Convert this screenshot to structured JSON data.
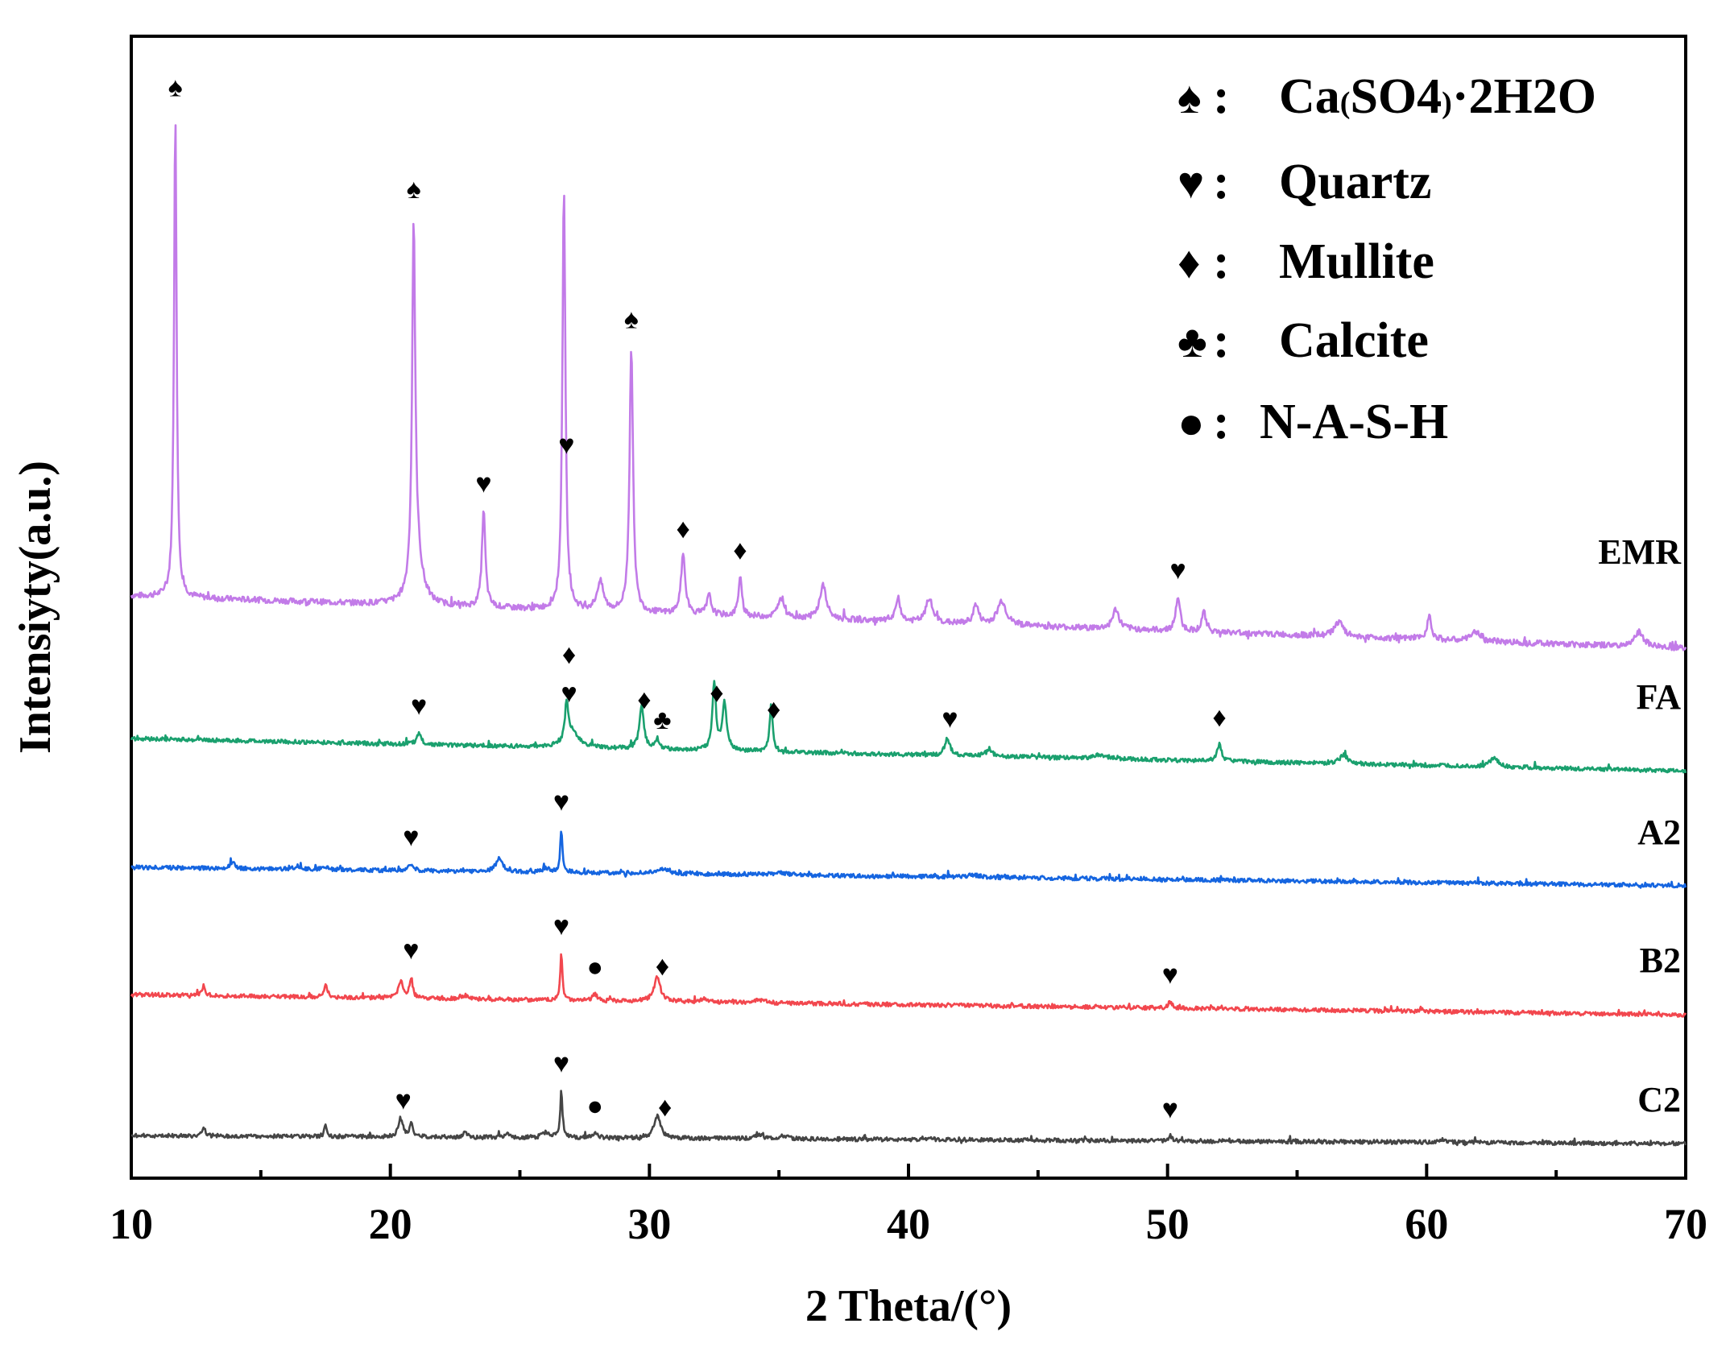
{
  "chart_data": {
    "type": "line",
    "title": "",
    "xlabel": "2 Theta/(°)",
    "ylabel": "Intensiyty(a.u.)",
    "xlim": [
      10,
      70
    ],
    "xticks": [
      10,
      20,
      30,
      40,
      50,
      60,
      70
    ],
    "yticks_shown": false,
    "legend": {
      "position": "top-right",
      "entries": [
        {
          "symbol": "♠",
          "sep": ":",
          "label": "Ca(SO4)·2H2O",
          "label_parts": {
            "a": "Ca",
            "b": "(",
            "c": "SO",
            "d": "4",
            "e": ")",
            "f": "·2H",
            "g": "2",
            "h": "O"
          }
        },
        {
          "symbol": "♥",
          "sep": ":",
          "label": "Quartz"
        },
        {
          "symbol": "♦",
          "sep": ":",
          "label": "Mullite"
        },
        {
          "symbol": "♣",
          "sep": ":",
          "label": "Calcite"
        },
        {
          "symbol": "●",
          "sep": ":",
          "label": "N-A-S-H"
        }
      ]
    },
    "series": [
      {
        "name": "EMR",
        "color": "#c27be8",
        "baseline": 0.0,
        "slope": -0.0018,
        "peaks": [
          [
            11.7,
            1.0,
            0.06
          ],
          [
            20.9,
            0.72,
            0.07
          ],
          [
            21.0,
            0.1,
            0.25
          ],
          [
            23.6,
            0.2,
            0.08
          ],
          [
            26.7,
            0.87,
            0.07
          ],
          [
            28.1,
            0.06,
            0.15
          ],
          [
            29.3,
            0.55,
            0.08
          ],
          [
            31.3,
            0.12,
            0.1
          ],
          [
            32.3,
            0.04,
            0.1
          ],
          [
            33.5,
            0.08,
            0.08
          ],
          [
            35.1,
            0.04,
            0.15
          ],
          [
            36.7,
            0.07,
            0.15
          ],
          [
            39.6,
            0.05,
            0.1
          ],
          [
            40.8,
            0.05,
            0.15
          ],
          [
            42.6,
            0.04,
            0.12
          ],
          [
            43.6,
            0.05,
            0.2
          ],
          [
            48.0,
            0.04,
            0.15
          ],
          [
            50.4,
            0.07,
            0.1
          ],
          [
            51.4,
            0.04,
            0.1
          ],
          [
            56.6,
            0.03,
            0.2
          ],
          [
            60.1,
            0.05,
            0.1
          ],
          [
            61.9,
            0.02,
            0.2
          ],
          [
            68.2,
            0.03,
            0.2
          ]
        ]
      },
      {
        "name": "FA",
        "color": "#1aa06e",
        "baseline": 0.0,
        "slope": -0.0016,
        "peaks": [
          [
            21.1,
            0.035,
            0.1
          ],
          [
            26.8,
            0.11,
            0.07
          ],
          [
            27.0,
            0.05,
            0.3
          ],
          [
            29.7,
            0.13,
            0.1
          ],
          [
            30.3,
            0.03,
            0.1
          ],
          [
            32.5,
            0.2,
            0.08
          ],
          [
            32.9,
            0.14,
            0.1
          ],
          [
            34.7,
            0.14,
            0.07
          ],
          [
            41.5,
            0.05,
            0.12
          ],
          [
            43.1,
            0.015,
            0.2
          ],
          [
            47.4,
            0.012,
            0.3
          ],
          [
            52.0,
            0.05,
            0.1
          ],
          [
            56.8,
            0.025,
            0.2
          ],
          [
            62.6,
            0.025,
            0.2
          ]
        ]
      },
      {
        "name": "A2",
        "color": "#1565e0",
        "baseline": 0.0,
        "slope": -0.0009,
        "peaks": [
          [
            13.9,
            0.02,
            0.1
          ],
          [
            16.4,
            0.012,
            0.1
          ],
          [
            17.5,
            0.01,
            0.1
          ],
          [
            20.8,
            0.02,
            0.1
          ],
          [
            24.2,
            0.04,
            0.15
          ],
          [
            26.0,
            0.012,
            0.15
          ],
          [
            26.6,
            0.13,
            0.05
          ],
          [
            30.5,
            0.012,
            0.3
          ],
          [
            35.0,
            0.006,
            0.4
          ],
          [
            42.5,
            0.006,
            0.3
          ]
        ]
      },
      {
        "name": "B2",
        "color": "#f2474e",
        "baseline": 0.0,
        "slope": -0.001,
        "peaks": [
          [
            12.8,
            0.03,
            0.06
          ],
          [
            17.5,
            0.04,
            0.06
          ],
          [
            20.4,
            0.05,
            0.1
          ],
          [
            20.8,
            0.06,
            0.07
          ],
          [
            22.9,
            0.01,
            0.1
          ],
          [
            26.6,
            0.14,
            0.05
          ],
          [
            27.9,
            0.02,
            0.1
          ],
          [
            30.3,
            0.07,
            0.15
          ],
          [
            32.1,
            0.01,
            0.1
          ],
          [
            34.2,
            0.008,
            0.2
          ],
          [
            50.1,
            0.02,
            0.08
          ],
          [
            59.8,
            0.01,
            0.08
          ]
        ]
      },
      {
        "name": "C2",
        "color": "#454545",
        "baseline": 0.0,
        "slope": -0.0004,
        "peaks": [
          [
            12.8,
            0.025,
            0.06
          ],
          [
            17.5,
            0.03,
            0.06
          ],
          [
            20.4,
            0.055,
            0.1
          ],
          [
            20.8,
            0.04,
            0.07
          ],
          [
            22.9,
            0.015,
            0.08
          ],
          [
            24.5,
            0.01,
            0.1
          ],
          [
            26.0,
            0.015,
            0.15
          ],
          [
            26.6,
            0.14,
            0.05
          ],
          [
            27.9,
            0.015,
            0.1
          ],
          [
            30.3,
            0.065,
            0.15
          ],
          [
            34.2,
            0.012,
            0.2
          ],
          [
            35.2,
            0.008,
            0.2
          ],
          [
            40.8,
            0.008,
            0.1
          ],
          [
            50.1,
            0.015,
            0.08
          ],
          [
            60.6,
            0.008,
            0.2
          ]
        ]
      }
    ],
    "annotations": [
      {
        "series": "EMR",
        "marks": [
          {
            "x": 11.7,
            "symbol": "♠"
          },
          {
            "x": 20.9,
            "symbol": "♠"
          },
          {
            "x": 23.6,
            "symbol": "♥"
          },
          {
            "x": 26.8,
            "symbol": "♥"
          },
          {
            "x": 29.3,
            "symbol": "♠"
          },
          {
            "x": 31.3,
            "symbol": "♦"
          },
          {
            "x": 33.5,
            "symbol": "♦"
          },
          {
            "x": 50.4,
            "symbol": "♥"
          }
        ]
      },
      {
        "series": "FA",
        "marks": [
          {
            "x": 21.1,
            "symbol": "♥"
          },
          {
            "x": 26.9,
            "symbol": "♥"
          },
          {
            "x": 26.9,
            "symbol": "♦"
          },
          {
            "x": 29.8,
            "symbol": "♦"
          },
          {
            "x": 30.5,
            "symbol": "♣"
          },
          {
            "x": 32.6,
            "symbol": "♦"
          },
          {
            "x": 34.8,
            "symbol": "♦"
          },
          {
            "x": 41.6,
            "symbol": "♥"
          },
          {
            "x": 52.0,
            "symbol": "♦"
          }
        ]
      },
      {
        "series": "A2",
        "marks": [
          {
            "x": 20.8,
            "symbol": "♥"
          },
          {
            "x": 26.6,
            "symbol": "♥"
          }
        ]
      },
      {
        "series": "B2",
        "marks": [
          {
            "x": 20.8,
            "symbol": "♥"
          },
          {
            "x": 26.6,
            "symbol": "♥"
          },
          {
            "x": 27.9,
            "symbol": "●"
          },
          {
            "x": 30.5,
            "symbol": "♦"
          },
          {
            "x": 50.1,
            "symbol": "♥"
          }
        ]
      },
      {
        "series": "C2",
        "marks": [
          {
            "x": 20.5,
            "symbol": "♥"
          },
          {
            "x": 26.6,
            "symbol": "♥"
          },
          {
            "x": 27.9,
            "symbol": "●"
          },
          {
            "x": 30.6,
            "symbol": "♦"
          },
          {
            "x": 50.1,
            "symbol": "♥"
          }
        ]
      }
    ]
  }
}
